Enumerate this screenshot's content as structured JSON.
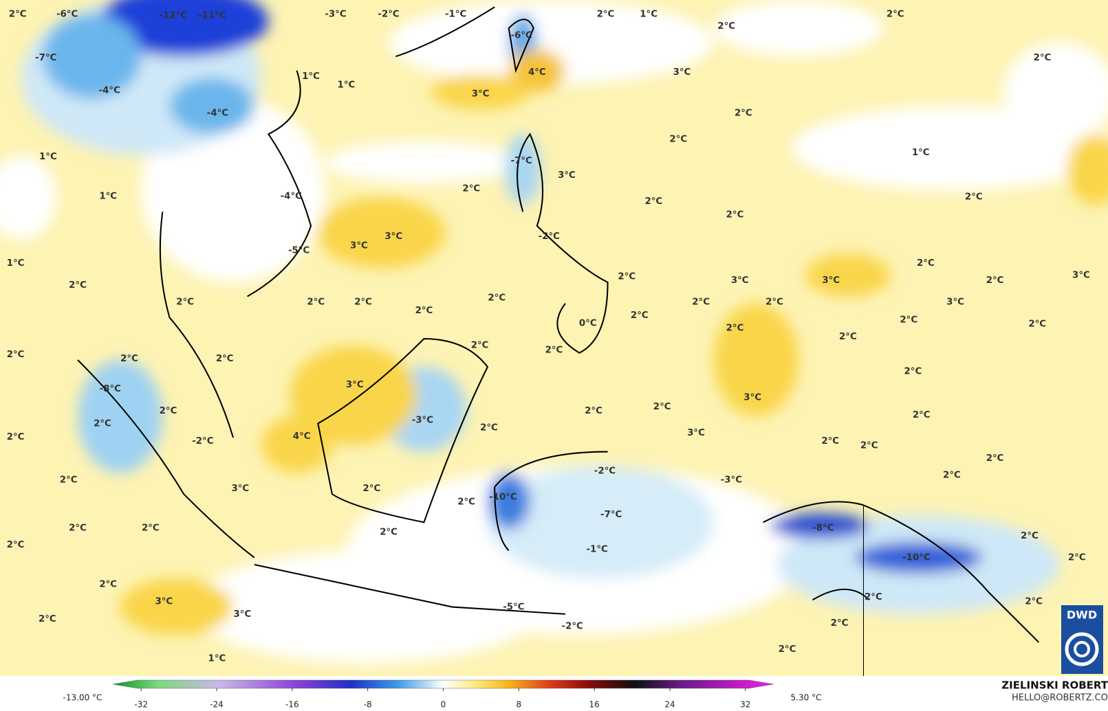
{
  "map": {
    "labels": [
      "2°C",
      "-6°C",
      "-12°C",
      "-11°C",
      "-3°C",
      "-2°C",
      "-1°C",
      "2°C",
      "1°C",
      "2°C",
      "2°C",
      "-7°C",
      "-6°C",
      "4°C",
      "3°C",
      "2°C",
      "-4°C",
      "1°C",
      "1°C",
      "3°C",
      "-4°C",
      "2°C",
      "2°C",
      "1°C",
      "1°C",
      "-7°C",
      "3°C",
      "2°C",
      "-4°C",
      "1°C",
      "2°C",
      "2°C",
      "2°C",
      "3°C",
      "-2°C",
      "3°C",
      "-5°C",
      "1°C",
      "2°C",
      "2°C",
      "2°C",
      "3°C",
      "3°C",
      "2°C",
      "3°C",
      "2°C",
      "2°C",
      "2°C",
      "2°C",
      "2°C",
      "2°C",
      "3°C",
      "2°C",
      "2°C",
      "0°C",
      "2°C",
      "2°C",
      "2°C",
      "2°C",
      "2°C",
      "2°C",
      "2°C",
      "2°C",
      "2°C",
      "2°C",
      "-8°C",
      "3°C",
      "3°C",
      "2°C",
      "2°C",
      "2°C",
      "2°C",
      "-3°C",
      "2°C",
      "2°C",
      "2°C",
      "-2°C",
      "4°C",
      "3°C",
      "2°C",
      "2°C",
      "-2°C",
      "2°C",
      "2°C",
      "-3°C",
      "2°C",
      "3°C",
      "2°C",
      "-10°C",
      "2°C",
      "-7°C",
      "2°C",
      "2°C",
      "-8°C",
      "2°C",
      "-1°C",
      "2°C",
      "2°C",
      "-10°C",
      "2°C",
      "2°C",
      "3°C",
      "-5°C",
      "2°C",
      "3°C",
      "2°C",
      "2°C",
      "2°C",
      "-2°C",
      "2°C",
      "1°C"
    ],
    "colorbar": {
      "min_label": "-13.00 °C",
      "max_label": "5.30 °C",
      "xlim": [
        -35,
        35
      ],
      "xticks": [
        -32,
        -24,
        -16,
        -8,
        0,
        8,
        16,
        24,
        32
      ]
    },
    "credit": {
      "name": "ZIELINSKI ROBERT",
      "contact": "HELLO@ROBERTZ.CO",
      "logo": "DWD"
    }
  }
}
